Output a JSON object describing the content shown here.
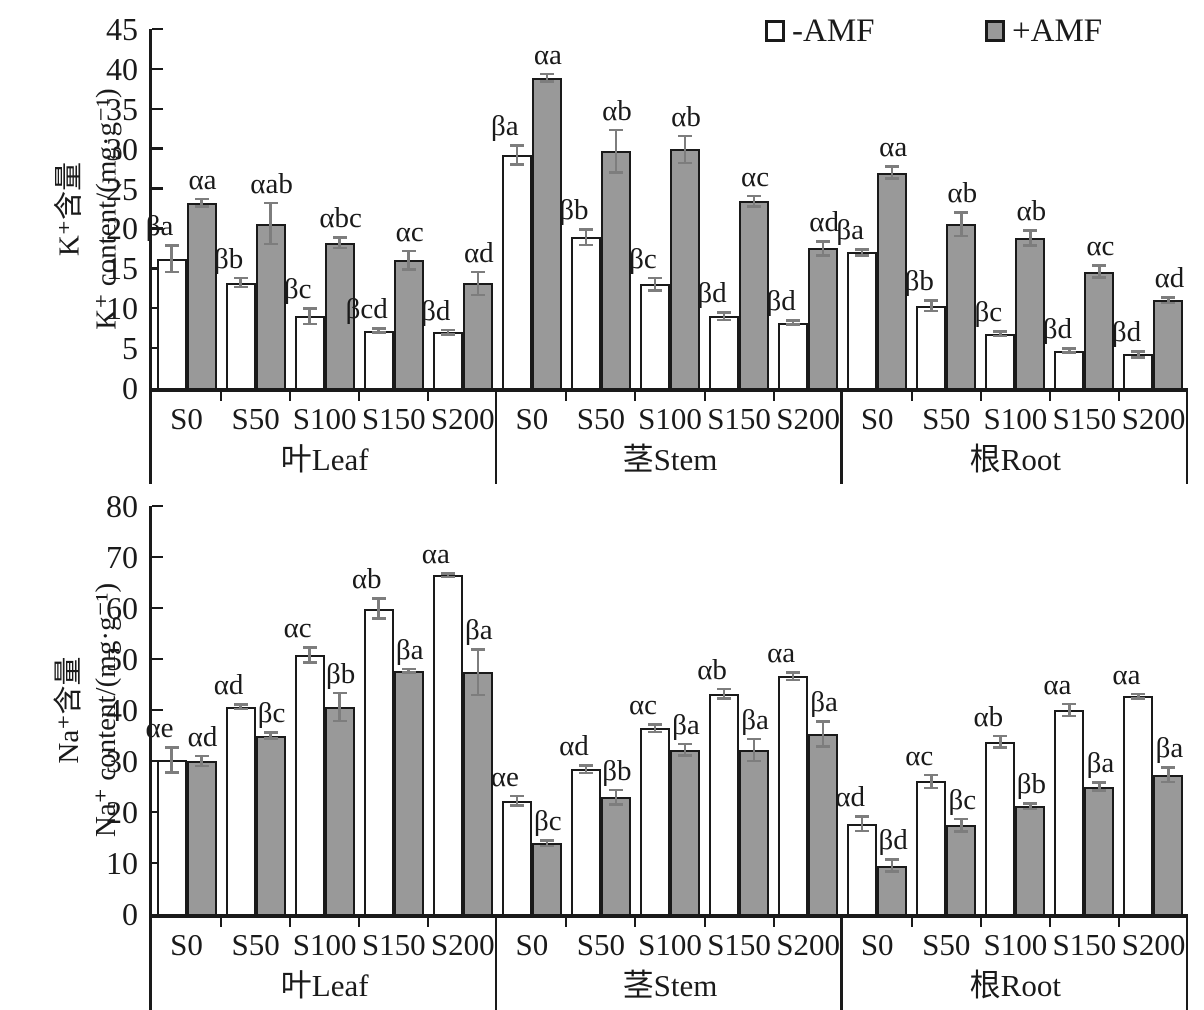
{
  "legend": [
    {
      "label": "-AMF",
      "swatch": "white-outline-square"
    },
    {
      "label": "+AMF",
      "swatch": "gray-filled-square"
    }
  ],
  "colors": {
    "minus_amf_fill": "#ffffff",
    "plus_amf_fill": "#999999",
    "bar_border": "#1a1a1a",
    "error_bar": "#7d7d7d",
    "axis": "#1a1a1a",
    "text": "#1a1a1a"
  },
  "chart_data": [
    {
      "type": "bar",
      "id": "k-content",
      "ylabel_zh": "K⁺含量",
      "ylabel_en": "K⁺ content/(mg·g⁻¹)",
      "ylim": [
        0,
        45
      ],
      "yticks": [
        0,
        5,
        10,
        15,
        20,
        25,
        30,
        35,
        40,
        45
      ],
      "grid": false,
      "legend_position": "top-right",
      "categories": [
        "S0",
        "S50",
        "S100",
        "S150",
        "S200"
      ],
      "groups": [
        {
          "label": "叶Leaf",
          "series": [
            {
              "name": "-AMF",
              "values": [
                16.2,
                13.2,
                9.0,
                7.2,
                7.0
              ],
              "errors": [
                1.7,
                0.6,
                1.0,
                0.3,
                0.3
              ],
              "sig": [
                "βa",
                "βb",
                "βc",
                "βcd",
                "βd"
              ]
            },
            {
              "name": "+AMF",
              "values": [
                23.2,
                20.6,
                18.2,
                16.0,
                13.1
              ],
              "errors": [
                0.5,
                2.6,
                0.7,
                1.2,
                1.5
              ],
              "sig": [
                "αa",
                "αab",
                "αbc",
                "αc",
                "αd"
              ]
            }
          ]
        },
        {
          "label": "茎Stem",
          "series": [
            {
              "name": "-AMF",
              "values": [
                29.2,
                18.9,
                13.0,
                9.0,
                8.2
              ],
              "errors": [
                1.2,
                1.0,
                0.8,
                0.5,
                0.3
              ],
              "sig": [
                "βa",
                "βb",
                "βc",
                "βd",
                "βd"
              ]
            },
            {
              "name": "+AMF",
              "values": [
                38.9,
                29.7,
                29.9,
                23.4,
                17.5
              ],
              "errors": [
                0.5,
                2.7,
                1.7,
                0.7,
                0.9
              ],
              "sig": [
                "αa",
                "αb",
                "αb",
                "αc",
                "αd"
              ]
            }
          ]
        },
        {
          "label": "根Root",
          "series": [
            {
              "name": "-AMF",
              "values": [
                17.0,
                10.3,
                6.8,
                4.7,
                4.2
              ],
              "errors": [
                0.4,
                0.7,
                0.3,
                0.3,
                0.4
              ],
              "sig": [
                "βa",
                "βb",
                "βc",
                "βd",
                "βd"
              ]
            },
            {
              "name": "+AMF",
              "values": [
                27.0,
                20.5,
                18.8,
                14.6,
                11.0
              ],
              "errors": [
                0.8,
                1.5,
                1.0,
                0.8,
                0.4
              ],
              "sig": [
                "αa",
                "αb",
                "αb",
                "αc",
                "αd"
              ]
            }
          ]
        }
      ]
    },
    {
      "type": "bar",
      "id": "na-content",
      "ylabel_zh": "Na⁺含量",
      "ylabel_en": "Na⁺ content/(mg·g⁻¹)",
      "ylim": [
        0,
        80
      ],
      "yticks": [
        0,
        10,
        20,
        30,
        40,
        50,
        60,
        70,
        80
      ],
      "grid": false,
      "legend_position": "none",
      "categories": [
        "S0",
        "S50",
        "S100",
        "S150",
        "S200"
      ],
      "groups": [
        {
          "label": "叶Leaf",
          "series": [
            {
              "name": "-AMF",
              "values": [
                30.2,
                40.6,
                50.8,
                59.9,
                66.4
              ],
              "errors": [
                2.5,
                0.5,
                1.5,
                2.0,
                0.4
              ],
              "sig": [
                "αe",
                "αd",
                "αc",
                "αb",
                "αa"
              ]
            },
            {
              "name": "+AMF",
              "values": [
                30.0,
                35.0,
                40.6,
                47.7,
                47.4
              ],
              "errors": [
                1.0,
                0.6,
                2.8,
                0.4,
                4.5
              ],
              "sig": [
                "αd",
                "βc",
                "βb",
                "βa",
                "βa"
              ]
            }
          ]
        },
        {
          "label": "茎Stem",
          "series": [
            {
              "name": "-AMF",
              "values": [
                22.2,
                28.4,
                36.4,
                43.2,
                46.6
              ],
              "errors": [
                1.0,
                0.8,
                0.8,
                1.0,
                0.8
              ],
              "sig": [
                "αe",
                "αd",
                "αc",
                "αb",
                "αa"
              ]
            },
            {
              "name": "+AMF",
              "values": [
                13.9,
                22.9,
                32.2,
                32.2,
                35.3
              ],
              "errors": [
                0.6,
                1.5,
                1.2,
                2.2,
                2.5
              ],
              "sig": [
                "βc",
                "βb",
                "βa",
                "βa",
                "βa"
              ]
            }
          ]
        },
        {
          "label": "根Root",
          "series": [
            {
              "name": "-AMF",
              "values": [
                17.7,
                26.0,
                33.8,
                40.0,
                42.7
              ],
              "errors": [
                1.5,
                1.3,
                1.2,
                1.2,
                0.5
              ],
              "sig": [
                "αd",
                "αc",
                "αb",
                "αa",
                "αa"
              ]
            },
            {
              "name": "+AMF",
              "values": [
                9.5,
                17.4,
                21.1,
                25.0,
                27.3
              ],
              "errors": [
                1.2,
                1.3,
                0.6,
                0.8,
                1.5
              ],
              "sig": [
                "βd",
                "βc",
                "βb",
                "βa",
                "βa"
              ]
            }
          ]
        }
      ]
    }
  ]
}
